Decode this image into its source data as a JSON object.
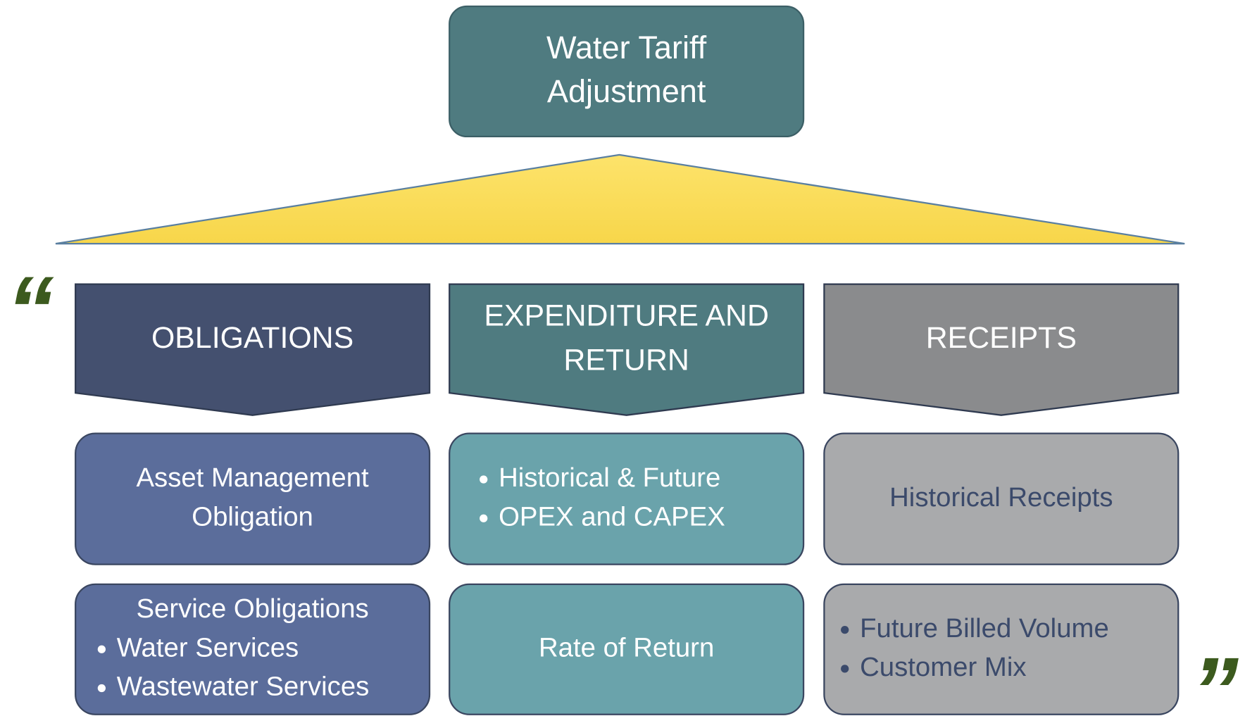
{
  "title": [
    "Water Tariff",
    "Adjustment"
  ],
  "quotes": {
    "open": "“",
    "close": "”"
  },
  "columns": [
    {
      "header": [
        "OBLIGATIONS"
      ],
      "boxes": [
        {
          "lines": [
            "Asset Management",
            "Obligation"
          ]
        },
        {
          "heading": "Service Obligations",
          "bullets": [
            "Water Services",
            "Wastewater Services"
          ]
        }
      ]
    },
    {
      "header": [
        "EXPENDITURE AND",
        "RETURN"
      ],
      "boxes": [
        {
          "bullets": [
            "Historical & Future",
            "OPEX and CAPEX"
          ]
        },
        {
          "lines": [
            "Rate of Return"
          ]
        }
      ]
    },
    {
      "header": [
        "RECEIPTS"
      ],
      "boxes": [
        {
          "lines": [
            "Historical Receipts"
          ]
        },
        {
          "bullets": [
            "Future Billed Volume",
            "Customer Mix"
          ]
        }
      ]
    }
  ]
}
